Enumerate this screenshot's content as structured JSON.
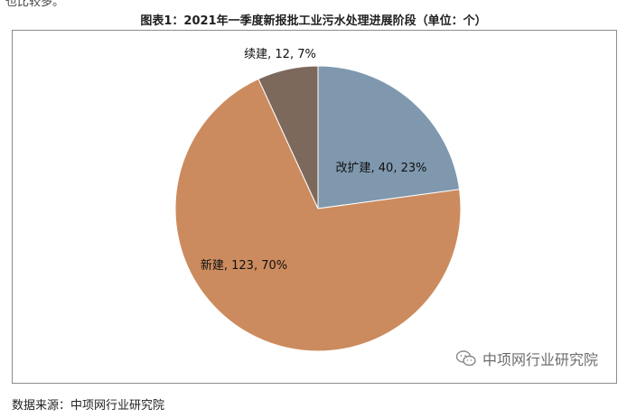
{
  "header_partial_text": "也比较多。",
  "chart_title": "图表1：2021年一季度新报批工业污水处理进展阶段（单位：个）",
  "watermark_text": "中项网行业研究院",
  "source_text": "数据来源：中项网行业研究院",
  "chart_data": {
    "type": "pie",
    "title": "图表1：2021年一季度新报批工业污水处理进展阶段（单位：个）",
    "slices": [
      {
        "label": "改扩建",
        "value": 40,
        "percent": "23%",
        "data_label": "改扩建, 40, 23%",
        "color": "#7f98ae"
      },
      {
        "label": "新建",
        "value": 123,
        "percent": "70%",
        "data_label": "新建, 123, 70%",
        "color": "#cc8b5e"
      },
      {
        "label": "续建",
        "value": 12,
        "percent": "7%",
        "data_label": "续建, 12, 7%",
        "color": "#7c695c"
      }
    ],
    "start": "12 o'clock, clockwise",
    "legend": "none",
    "data_labels": true
  }
}
